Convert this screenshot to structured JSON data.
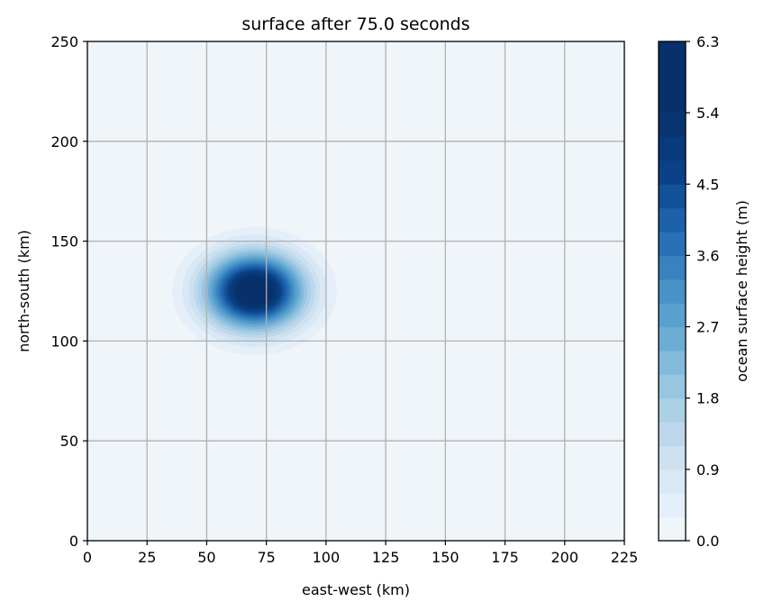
{
  "chart_data": {
    "type": "heatmap",
    "subtype": "filled-contour",
    "title": "surface after 75.0 seconds",
    "xlabel": "east-west (km)",
    "ylabel": "north-south (km)",
    "xlim": [
      0,
      225
    ],
    "ylim": [
      0,
      250
    ],
    "x_ticks": [
      0,
      25,
      50,
      75,
      100,
      125,
      150,
      175,
      200,
      225
    ],
    "y_ticks": [
      0,
      50,
      100,
      150,
      200,
      250
    ],
    "grid": true,
    "gaussian": {
      "center_x": 70,
      "center_y": 125,
      "amplitude": 6.3,
      "sigma_x": 14,
      "sigma_y": 13
    },
    "colorbar": {
      "label": "ocean surface height (m)",
      "min": 0.0,
      "max": 6.3,
      "ticks": [
        "0.0",
        "0.9",
        "1.8",
        "2.7",
        "3.6",
        "4.5",
        "5.4",
        "6.3"
      ],
      "level_step": 0.3,
      "colors": [
        "#f0f5f9",
        "#e5eff9",
        "#d9e8f5",
        "#cde1f1",
        "#bdd7ec",
        "#acd0e6",
        "#98c5e0",
        "#83badb",
        "#6dadd5",
        "#59a0ce",
        "#4792c6",
        "#3782bf",
        "#2871b6",
        "#1c61a9",
        "#135198",
        "#0b4287",
        "#083b7c",
        "#08356f",
        "#08306b",
        "#08306b",
        "#08306b"
      ]
    }
  }
}
